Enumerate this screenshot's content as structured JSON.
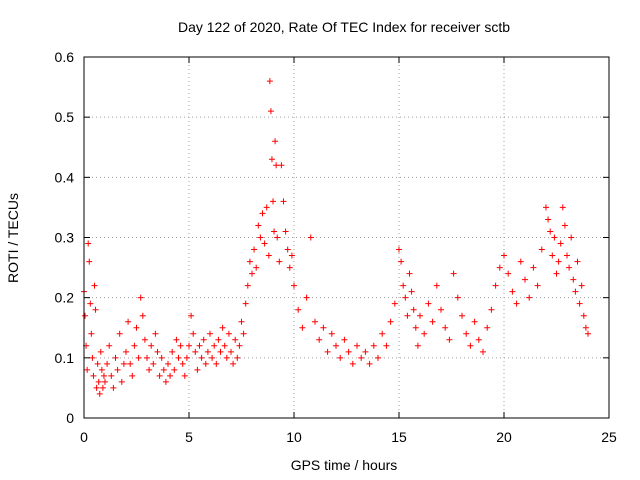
{
  "chart_data": {
    "type": "scatter",
    "title": "Day 122 of 2020, Rate Of TEC Index for receiver sctb",
    "xlabel": "GPS time / hours",
    "ylabel": "ROTI / TECUs",
    "xlim": [
      0,
      25
    ],
    "ylim": [
      0,
      0.6
    ],
    "xticks": [
      0,
      5,
      10,
      15,
      20,
      25
    ],
    "yticks": [
      0,
      0.1,
      0.2,
      0.3,
      0.4,
      0.5,
      0.6
    ],
    "xtick_labels": [
      "0",
      "5",
      "10",
      "15",
      "20",
      "25"
    ],
    "ytick_labels": [
      "0",
      "0.1",
      "0.2",
      "0.3",
      "0.4",
      "0.5",
      "0.6"
    ],
    "grid": true,
    "marker": "+",
    "color": "#ff0000",
    "series": [
      {
        "x": [
          0.0,
          0.05,
          0.1,
          0.15,
          0.2,
          0.25,
          0.3,
          0.35,
          0.4,
          0.45,
          0.5,
          0.55,
          0.6,
          0.65,
          0.7,
          0.75,
          0.8,
          0.85,
          0.9,
          0.95,
          1.0,
          1.1,
          1.2,
          1.3,
          1.4,
          1.5,
          1.6,
          1.7,
          1.8,
          1.9,
          2.0,
          2.1,
          2.2,
          2.3,
          2.4,
          2.5,
          2.6,
          2.7,
          2.8,
          2.9,
          3.0,
          3.1,
          3.2,
          3.3,
          3.4,
          3.5,
          3.6,
          3.7,
          3.8,
          3.9,
          4.0,
          4.1,
          4.2,
          4.3,
          4.4,
          4.5,
          4.6,
          4.7,
          4.8,
          4.9,
          5.0,
          5.1,
          5.2,
          5.3,
          5.4,
          5.5,
          5.6,
          5.7,
          5.8,
          5.9,
          6.0,
          6.1,
          6.2,
          6.3,
          6.4,
          6.5,
          6.6,
          6.7,
          6.8,
          6.9,
          7.0,
          7.1,
          7.2,
          7.3,
          7.4,
          7.5,
          7.6,
          7.7,
          7.8,
          7.9,
          8.0,
          8.1,
          8.2,
          8.3,
          8.4,
          8.5,
          8.6,
          8.7,
          8.8,
          8.85,
          8.9,
          8.95,
          9.0,
          9.05,
          9.1,
          9.15,
          9.2,
          9.3,
          9.4,
          9.5,
          9.6,
          9.7,
          9.8,
          9.9,
          10.0,
          10.2,
          10.4,
          10.6,
          10.8,
          11.0,
          11.2,
          11.4,
          11.6,
          11.8,
          12.0,
          12.2,
          12.4,
          12.6,
          12.8,
          13.0,
          13.2,
          13.4,
          13.6,
          13.8,
          14.0,
          14.2,
          14.4,
          14.6,
          14.8,
          15.0,
          15.1,
          15.2,
          15.3,
          15.4,
          15.5,
          15.6,
          15.7,
          15.8,
          15.9,
          16.0,
          16.2,
          16.4,
          16.6,
          16.8,
          17.0,
          17.2,
          17.4,
          17.6,
          17.8,
          18.0,
          18.2,
          18.4,
          18.6,
          18.8,
          19.0,
          19.2,
          19.4,
          19.6,
          19.8,
          20.0,
          20.2,
          20.4,
          20.6,
          20.8,
          21.0,
          21.2,
          21.4,
          21.6,
          21.8,
          22.0,
          22.1,
          22.2,
          22.3,
          22.4,
          22.5,
          22.6,
          22.7,
          22.8,
          22.9,
          23.0,
          23.1,
          23.2,
          23.3,
          23.4,
          23.5,
          23.6,
          23.7,
          23.8,
          23.9,
          24.0
        ],
        "y": [
          0.21,
          0.17,
          0.12,
          0.08,
          0.29,
          0.26,
          0.19,
          0.14,
          0.1,
          0.07,
          0.22,
          0.18,
          0.05,
          0.09,
          0.06,
          0.04,
          0.11,
          0.08,
          0.05,
          0.07,
          0.06,
          0.09,
          0.12,
          0.07,
          0.05,
          0.1,
          0.08,
          0.14,
          0.06,
          0.09,
          0.11,
          0.16,
          0.09,
          0.07,
          0.12,
          0.15,
          0.1,
          0.2,
          0.17,
          0.13,
          0.1,
          0.08,
          0.12,
          0.09,
          0.14,
          0.11,
          0.07,
          0.1,
          0.08,
          0.06,
          0.09,
          0.07,
          0.11,
          0.08,
          0.13,
          0.1,
          0.12,
          0.09,
          0.07,
          0.1,
          0.12,
          0.17,
          0.14,
          0.11,
          0.08,
          0.12,
          0.1,
          0.13,
          0.09,
          0.11,
          0.14,
          0.1,
          0.12,
          0.09,
          0.13,
          0.11,
          0.15,
          0.12,
          0.1,
          0.14,
          0.11,
          0.09,
          0.13,
          0.1,
          0.12,
          0.16,
          0.14,
          0.19,
          0.22,
          0.26,
          0.24,
          0.28,
          0.25,
          0.32,
          0.3,
          0.34,
          0.29,
          0.35,
          0.27,
          0.56,
          0.51,
          0.43,
          0.36,
          0.31,
          0.46,
          0.42,
          0.3,
          0.26,
          0.42,
          0.36,
          0.31,
          0.28,
          0.25,
          0.27,
          0.22,
          0.18,
          0.15,
          0.2,
          0.3,
          0.16,
          0.13,
          0.15,
          0.11,
          0.14,
          0.12,
          0.1,
          0.13,
          0.11,
          0.09,
          0.12,
          0.1,
          0.11,
          0.09,
          0.12,
          0.1,
          0.14,
          0.12,
          0.16,
          0.19,
          0.28,
          0.26,
          0.22,
          0.2,
          0.17,
          0.24,
          0.21,
          0.18,
          0.15,
          0.12,
          0.17,
          0.14,
          0.19,
          0.16,
          0.22,
          0.18,
          0.15,
          0.13,
          0.24,
          0.2,
          0.17,
          0.14,
          0.12,
          0.16,
          0.13,
          0.11,
          0.15,
          0.18,
          0.22,
          0.25,
          0.27,
          0.24,
          0.21,
          0.19,
          0.26,
          0.23,
          0.2,
          0.25,
          0.22,
          0.28,
          0.35,
          0.33,
          0.31,
          0.27,
          0.3,
          0.24,
          0.26,
          0.29,
          0.35,
          0.32,
          0.27,
          0.25,
          0.3,
          0.23,
          0.21,
          0.26,
          0.19,
          0.22,
          0.17,
          0.15,
          0.14
        ]
      }
    ]
  }
}
